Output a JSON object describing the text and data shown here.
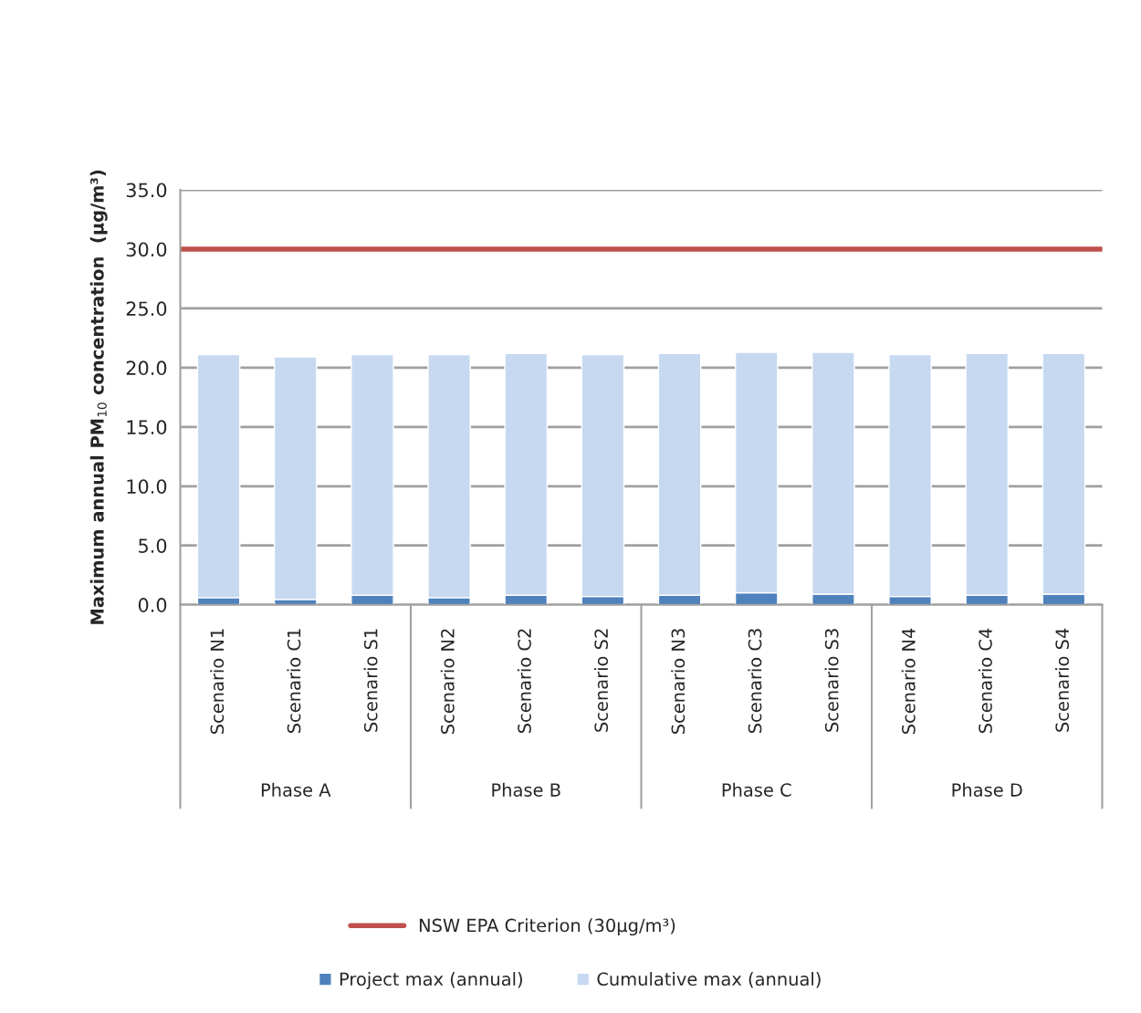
{
  "chart_data": {
    "type": "bar",
    "stacked": true,
    "ylabel": "Maximum annual PM$_{10}$ concentration  (µg/m³)",
    "categories": [
      "Scenario N1",
      "Scenario C1",
      "Scenario S1",
      "Scenario N2",
      "Scenario C2",
      "Scenario S2",
      "Scenario N3",
      "Scenario C3",
      "Scenario S3",
      "Scenario N4",
      "Scenario C4",
      "Scenario S4"
    ],
    "series": [
      {
        "name": "Project max (annual)",
        "color": "#4f81bd",
        "values": [
          0.6,
          0.45,
          0.8,
          0.6,
          0.8,
          0.7,
          0.8,
          1.0,
          0.9,
          0.7,
          0.8,
          0.9
        ]
      },
      {
        "name": "Cumulative max (annual)",
        "color": "#c6d9f1",
        "values": [
          20.5,
          20.45,
          20.3,
          20.5,
          20.4,
          20.4,
          20.4,
          20.3,
          20.4,
          20.4,
          20.4,
          20.3
        ]
      }
    ],
    "annotations": [
      "Phase A",
      "Phase B",
      "Phase C",
      "Phase D"
    ],
    "ref_lines": [
      {
        "axis": "y",
        "value": 30,
        "label": "NSW EPA Criterion (30µg/m³)",
        "color": "#c0504d",
        "line_style": "solid"
      }
    ],
    "ylim": [
      0,
      35
    ],
    "yticks": [
      {
        "value": 0,
        "label": "0.0"
      },
      {
        "value": 5,
        "label": "5.0"
      },
      {
        "value": 10,
        "label": "10.0"
      },
      {
        "value": 15,
        "label": "15.0"
      },
      {
        "value": 20,
        "label": "20.0"
      },
      {
        "value": 25,
        "label": "25.0"
      },
      {
        "value": 30,
        "label": "30.0"
      },
      {
        "value": 35,
        "label": "35.0"
      }
    ],
    "grid": "y",
    "legend": "bottom"
  }
}
